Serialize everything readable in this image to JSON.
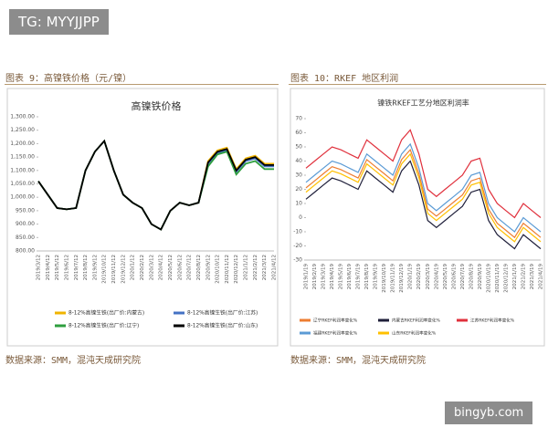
{
  "watermark_top": "TG: MYYJJPP",
  "watermark_bottom": "bingyb.com",
  "captions": [
    "图表 9：高镍铁价格（元/镍）",
    "图表 10：RKEF 地区利润"
  ],
  "sources": [
    "数据来源：SMM，混沌天成研究院",
    "数据来源：SMM，混沌天成研究院"
  ],
  "chart_data": [
    {
      "type": "line",
      "title": "高镍铁价格",
      "categories": [
        "2019/3/12",
        "2019/4/12",
        "2019/5/12",
        "2019/6/12",
        "2019/7/12",
        "2019/8/12",
        "2019/9/12",
        "2019/10/12",
        "2019/11/12",
        "2019/12/12",
        "2020/1/12",
        "2020/2/12",
        "2020/3/12",
        "2020/4/12",
        "2020/5/12",
        "2020/6/12",
        "2020/7/12",
        "2020/8/12",
        "2020/9/12",
        "2020/10/12",
        "2020/11/12",
        "2020/12/12",
        "2021/1/12",
        "2021/2/12",
        "2021/3/12",
        "2021/4/12"
      ],
      "series": [
        {
          "name": "8-12%高镍生铁(出厂价:内蒙古)",
          "color": "#f0b400",
          "values": [
            1060,
            1010,
            960,
            955,
            960,
            1100,
            1170,
            1210,
            1100,
            1010,
            980,
            960,
            900,
            880,
            950,
            980,
            970,
            980,
            1135,
            1175,
            1185,
            1105,
            1145,
            1155,
            1125,
            1125
          ]
        },
        {
          "name": "8-12%高镍生铁(出厂价:江苏)",
          "color": "#4472c4",
          "values": [
            1060,
            1010,
            960,
            955,
            960,
            1100,
            1170,
            1210,
            1100,
            1010,
            980,
            960,
            900,
            880,
            950,
            980,
            970,
            980,
            1125,
            1165,
            1175,
            1095,
            1135,
            1145,
            1115,
            1115
          ]
        },
        {
          "name": "8-12%高镍生铁(出厂价:辽宁)",
          "color": "#2e9e3e",
          "values": [
            1060,
            1010,
            960,
            955,
            960,
            1100,
            1170,
            1210,
            1100,
            1010,
            980,
            960,
            900,
            880,
            950,
            980,
            970,
            980,
            1115,
            1160,
            1170,
            1085,
            1125,
            1135,
            1105,
            1105
          ]
        },
        {
          "name": "8-12%高镍生铁(出厂价:山东)",
          "color": "#000000",
          "values": [
            1060,
            1010,
            960,
            955,
            960,
            1100,
            1170,
            1210,
            1100,
            1010,
            980,
            960,
            900,
            880,
            950,
            980,
            970,
            980,
            1130,
            1170,
            1180,
            1100,
            1140,
            1150,
            1120,
            1120
          ]
        }
      ],
      "ylim": [
        800,
        1300
      ],
      "yticks": [
        {
          "value": 800,
          "label": "800.00"
        },
        {
          "value": 850,
          "label": "850.00"
        },
        {
          "value": 900,
          "label": "900.00"
        },
        {
          "value": 950,
          "label": "950.00"
        },
        {
          "value": 1000,
          "label": "1,000.00"
        },
        {
          "value": 1050,
          "label": "1,050.00"
        },
        {
          "value": 1100,
          "label": "1,100.00"
        },
        {
          "value": 1150,
          "label": "1,150.00"
        },
        {
          "value": 1200,
          "label": "1,200.00"
        },
        {
          "value": 1250,
          "label": "1,250.00"
        },
        {
          "value": 1300,
          "label": "1,300.00"
        }
      ],
      "grid": false
    },
    {
      "type": "line",
      "title": "镍铁RKEF工艺分地区利润率",
      "categories": [
        "2019/1/19",
        "2019/2/19",
        "2019/3/19",
        "2019/4/19",
        "2019/5/19",
        "2019/6/19",
        "2019/7/19",
        "2019/8/19",
        "2019/9/19",
        "2019/10/19",
        "2019/11/19",
        "2019/12/19",
        "2020/1/19",
        "2020/2/19",
        "2020/3/19",
        "2020/4/19",
        "2020/5/19",
        "2020/6/19",
        "2020/7/19",
        "2020/8/19",
        "2020/9/19",
        "2020/10/19",
        "2020/11/19",
        "2020/12/19",
        "2021/1/19",
        "2021/2/19",
        "2021/3/19",
        "2021/4/19"
      ],
      "series": [
        {
          "name": "辽宁RKEF利润率变化%",
          "color": "#ed7d31",
          "values": [
            21,
            26,
            31,
            36,
            34,
            31,
            28,
            41,
            36,
            31,
            26,
            41,
            48,
            31,
            6,
            1,
            6,
            11,
            16,
            26,
            28,
            6,
            -4,
            -9,
            -14,
            -4,
            -9,
            -14
          ]
        },
        {
          "name": "内蒙古RKEF利润率变化%",
          "color": "#1f1f3a",
          "values": [
            13,
            18,
            23,
            28,
            26,
            23,
            20,
            33,
            28,
            23,
            18,
            33,
            40,
            23,
            -2,
            -7,
            -2,
            3,
            8,
            18,
            20,
            -2,
            -12,
            -17,
            -22,
            -12,
            -17,
            -22
          ]
        },
        {
          "name": "江苏RKEF利润率变化%",
          "color": "#e0303c",
          "values": [
            35,
            40,
            45,
            50,
            48,
            45,
            42,
            55,
            50,
            45,
            40,
            55,
            62,
            45,
            20,
            15,
            20,
            25,
            30,
            40,
            42,
            20,
            10,
            5,
            0,
            10,
            5,
            0
          ]
        },
        {
          "name": "福建RKEF利润率变化%",
          "color": "#5b9bd5",
          "values": [
            25,
            30,
            35,
            40,
            38,
            35,
            32,
            45,
            40,
            35,
            30,
            45,
            52,
            35,
            10,
            5,
            10,
            15,
            20,
            30,
            32,
            10,
            0,
            -5,
            -10,
            0,
            -5,
            -10
          ]
        },
        {
          "name": "山东RKEF利润率变化%",
          "color": "#ffc000",
          "values": [
            18,
            23,
            28,
            33,
            31,
            28,
            25,
            38,
            33,
            28,
            23,
            38,
            45,
            28,
            3,
            -2,
            3,
            8,
            13,
            23,
            25,
            3,
            -7,
            -12,
            -17,
            -7,
            -12,
            -17
          ]
        }
      ],
      "ylim": [
        -30,
        70
      ],
      "yticks": [
        -30,
        -20,
        -10,
        0,
        10,
        20,
        30,
        40,
        50,
        60,
        70
      ],
      "grid": false
    }
  ]
}
